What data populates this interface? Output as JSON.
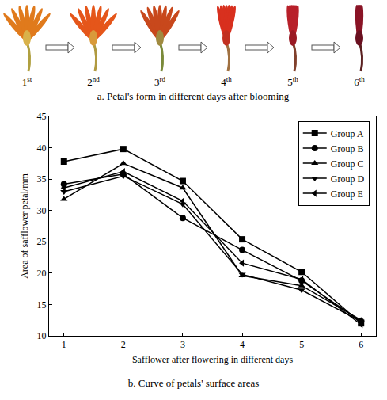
{
  "panel_a": {
    "labels": [
      "1st",
      "2nd",
      "3rd",
      "4th",
      "5th",
      "6th"
    ],
    "caption": "a. Petal's form in different days after blooming"
  },
  "chart_data": {
    "type": "line",
    "caption": "b. Curve of petals' surface areas",
    "x_label": "Safflower after flowering in different days",
    "y_label": "Area of safflower petal/mm",
    "x": [
      1,
      2,
      3,
      4,
      5,
      6
    ],
    "series": [
      {
        "name": "Group A",
        "color": "#000000",
        "marker": "square",
        "values": [
          37.8,
          39.8,
          34.7,
          25.4,
          20.2,
          12.0
        ]
      },
      {
        "name": "Group B",
        "color": "#000000",
        "marker": "circle",
        "values": [
          34.2,
          35.8,
          28.8,
          23.7,
          18.8,
          12.3
        ]
      },
      {
        "name": "Group C",
        "color": "#000000",
        "marker": "triangle-up",
        "values": [
          31.8,
          37.5,
          33.6,
          19.6,
          18.0,
          12.5
        ]
      },
      {
        "name": "Group D",
        "color": "#000000",
        "marker": "triangle-down",
        "values": [
          33.0,
          35.5,
          31.0,
          19.8,
          17.3,
          12.3
        ]
      },
      {
        "name": "Group E",
        "color": "#000000",
        "marker": "triangle-left",
        "values": [
          33.6,
          36.2,
          31.5,
          21.6,
          19.0,
          11.8
        ]
      }
    ],
    "xlim": [
      0.75,
      6.25
    ],
    "xticks": [
      1,
      2,
      3,
      4,
      5,
      6
    ],
    "ylim": [
      10,
      45
    ],
    "yticks": [
      10,
      15,
      20,
      25,
      30,
      35,
      40,
      45
    ],
    "legend": "top-right",
    "grid": false
  }
}
